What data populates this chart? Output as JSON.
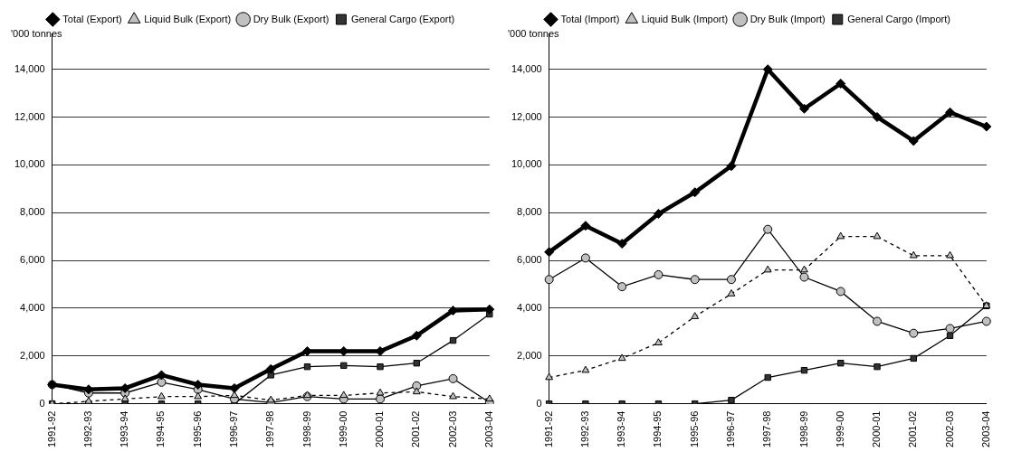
{
  "chart_data": [
    {
      "type": "line",
      "ylabel": "'000 tonnes",
      "categories": [
        "1991-92",
        "1992-93",
        "1993-94",
        "1994-95",
        "1995-96",
        "1996-97",
        "1997-98",
        "1998-99",
        "1999-00",
        "2000-01",
        "2001-02",
        "2002-03",
        "2003-04"
      ],
      "ylim": [
        0,
        15500
      ],
      "yticks": [
        {
          "value": 0,
          "label": "0"
        },
        {
          "value": 2000,
          "label": "2,000"
        },
        {
          "value": 4000,
          "label": "4,000"
        },
        {
          "value": 6000,
          "label": "6,000"
        },
        {
          "value": 8000,
          "label": "8,000"
        },
        {
          "value": 10000,
          "label": "10,000"
        },
        {
          "value": 12000,
          "label": "12,000"
        },
        {
          "value": 14000,
          "label": "14,000"
        }
      ],
      "grid": "y",
      "legend": "top",
      "series": [
        {
          "name": "General Cargo (Export)",
          "color": "#333333",
          "marker": "square",
          "line_style": "solid",
          "values": [
            0,
            0,
            0,
            0,
            0,
            0,
            1200,
            1550,
            1600,
            1550,
            1700,
            2650,
            3750
          ]
        },
        {
          "name": "Dry Bulk (Export)",
          "color": "#c0c0c0",
          "marker": "circle",
          "line_style": "solid",
          "values": [
            800,
            450,
            450,
            900,
            600,
            200,
            50,
            300,
            200,
            200,
            750,
            1050,
            50
          ]
        },
        {
          "name": "Liquid Bulk (Export)",
          "color": "#c0c0c0",
          "marker": "triangle",
          "line_style": "dashed",
          "values": [
            0,
            100,
            200,
            300,
            300,
            350,
            150,
            350,
            350,
            450,
            500,
            300,
            200
          ]
        },
        {
          "name": "Total (Export)",
          "color": "#000000",
          "marker": "diamond",
          "line_style": "solid",
          "values": [
            800,
            600,
            650,
            1200,
            800,
            650,
            1450,
            2200,
            2200,
            2200,
            2850,
            3900,
            3950
          ]
        }
      ]
    },
    {
      "type": "line",
      "ylabel": "'000 tonnes",
      "categories": [
        "1991-92",
        "1992-93",
        "1993-94",
        "1994-95",
        "1995-96",
        "1996-97",
        "1997-98",
        "1998-99",
        "1999-00",
        "2000-01",
        "2001-02",
        "2002-03",
        "2003-04"
      ],
      "ylim": [
        0,
        15500
      ],
      "yticks": [
        {
          "value": 0,
          "label": "0"
        },
        {
          "value": 2000,
          "label": "2,000"
        },
        {
          "value": 4000,
          "label": "4,000"
        },
        {
          "value": 6000,
          "label": "6,000"
        },
        {
          "value": 8000,
          "label": "8,000"
        },
        {
          "value": 10000,
          "label": "10,000"
        },
        {
          "value": 12000,
          "label": "12,000"
        },
        {
          "value": 14000,
          "label": "14,000"
        }
      ],
      "grid": "y",
      "legend": "top",
      "series": [
        {
          "name": "General Cargo (Import)",
          "color": "#333333",
          "marker": "square",
          "line_style": "solid",
          "values": [
            0,
            0,
            0,
            0,
            0,
            150,
            1100,
            1400,
            1700,
            1550,
            1900,
            2850,
            4100
          ]
        },
        {
          "name": "Dry Bulk (Import)",
          "color": "#c0c0c0",
          "marker": "circle",
          "line_style": "solid",
          "values": [
            5200,
            6100,
            4900,
            5400,
            5200,
            5200,
            7300,
            5300,
            4700,
            3450,
            2950,
            3150,
            3450
          ]
        },
        {
          "name": "Liquid Bulk (Import)",
          "color": "#c0c0c0",
          "marker": "triangle",
          "line_style": "dashed",
          "values": [
            1100,
            1400,
            1900,
            2550,
            3650,
            4600,
            5600,
            5600,
            7000,
            7000,
            6200,
            6200,
            4100
          ]
        },
        {
          "name": "Total (Import)",
          "color": "#000000",
          "marker": "diamond",
          "line_style": "solid",
          "values": [
            6350,
            7450,
            6700,
            7950,
            8850,
            9950,
            14000,
            12350,
            13400,
            12000,
            11000,
            12200,
            11600
          ]
        }
      ]
    }
  ]
}
